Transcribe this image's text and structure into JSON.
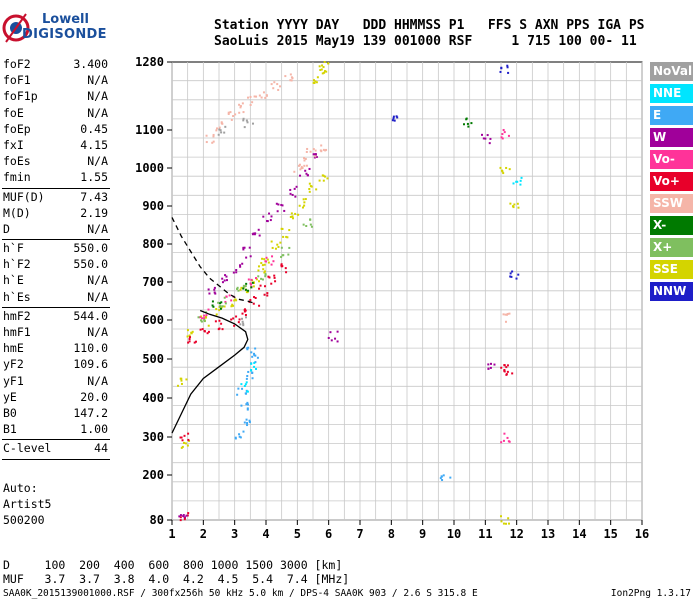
{
  "logo": {
    "brand": "Lowell",
    "product": "DIGISONDE"
  },
  "header": {
    "line1": "Station YYYY DAY   DDD HHMMSS P1   FFS S AXN PPS IGA PS",
    "line2": "SaoLuis 2015 May19 139 001000 RSF     1 715 100 00- 11"
  },
  "params": [
    {
      "label": "foF2",
      "value": "3.400"
    },
    {
      "label": "foF1",
      "value": "N/A"
    },
    {
      "label": "foF1p",
      "value": "N/A"
    },
    {
      "label": "foE",
      "value": "N/A"
    },
    {
      "label": "foEp",
      "value": "0.45"
    },
    {
      "label": "fxI",
      "value": "4.15"
    },
    {
      "label": "foEs",
      "value": "N/A"
    },
    {
      "label": "fmin",
      "value": "1.55"
    },
    {
      "sep": true
    },
    {
      "label": "MUF(D)",
      "value": "7.43"
    },
    {
      "label": "M(D)",
      "value": "2.19"
    },
    {
      "label": "D",
      "value": "N/A"
    },
    {
      "sep": true
    },
    {
      "label": "h`F",
      "value": "550.0"
    },
    {
      "label": "h`F2",
      "value": "550.0"
    },
    {
      "label": "h`E",
      "value": "N/A"
    },
    {
      "label": "h`Es",
      "value": "N/A"
    },
    {
      "sep": true
    },
    {
      "label": "hmF2",
      "value": "544.0"
    },
    {
      "label": "hmF1",
      "value": "N/A"
    },
    {
      "label": "hmE",
      "value": "110.0"
    },
    {
      "label": "yF2",
      "value": "109.6"
    },
    {
      "label": "yF1",
      "value": "N/A"
    },
    {
      "label": "yE",
      "value": "20.0"
    },
    {
      "label": "B0",
      "value": "147.2"
    },
    {
      "label": "B1",
      "value": "1.00"
    },
    {
      "sep": true
    },
    {
      "label": "C-level",
      "value": "44"
    },
    {
      "sep": true
    }
  ],
  "auto": {
    "line1": "Auto:",
    "line2": "Artist5",
    "line3": "500200"
  },
  "muf_table": {
    "d_row": "D     100  200  400  600  800 1000 1500 3000 [km]",
    "muf_row": "MUF   3.7  3.7  3.8  4.0  4.2  4.5  5.4  7.4 [MHz]"
  },
  "footer": {
    "left": "SAA0K_2015139001000.RSF / 300fx256h 50 kHz 5.0 km / DPS-4 SAA0K 903 / 2.6 S 315.8 E",
    "right": "Ion2Png 1.3.17"
  },
  "legend": [
    {
      "label": "NoVal",
      "color": "#a0a0a0"
    },
    {
      "label": "NNE",
      "color": "#00e5ff"
    },
    {
      "label": "E",
      "color": "#3fa9f5"
    },
    {
      "label": "W",
      "color": "#a0009a"
    },
    {
      "label": "Vo-",
      "color": "#ff3399"
    },
    {
      "label": "Vo+",
      "color": "#e8002a"
    },
    {
      "label": "SSW",
      "color": "#f5b5a8"
    },
    {
      "label": "X-",
      "color": "#007a00"
    },
    {
      "label": "X+",
      "color": "#7fbf5f"
    },
    {
      "label": "SSE",
      "color": "#d4d400"
    },
    {
      "label": "NNW",
      "color": "#1e1ec8"
    }
  ],
  "chart_data": {
    "type": "scatter",
    "title": "",
    "xlabel": "",
    "ylabel": "",
    "xlim": [
      1,
      16
    ],
    "ylim": [
      80,
      1280
    ],
    "x_ticks": [
      1,
      2,
      3,
      4,
      5,
      6,
      7,
      8,
      9,
      10,
      11,
      12,
      13,
      14,
      15,
      16
    ],
    "y_ticks": [
      80,
      200,
      300,
      400,
      500,
      600,
      700,
      800,
      900,
      1000,
      1100,
      1280
    ],
    "grid": true,
    "legend_position": "right",
    "series": [
      {
        "name": "SSE",
        "color": "#d4d400",
        "points": [
          [
            1.6,
            570
          ],
          [
            2.0,
            600
          ],
          [
            2.5,
            630
          ],
          [
            3.0,
            650
          ],
          [
            3.3,
            680
          ],
          [
            3.6,
            700
          ],
          [
            3.8,
            740
          ],
          [
            4.0,
            760
          ],
          [
            4.3,
            800
          ],
          [
            4.6,
            830
          ],
          [
            4.9,
            870
          ],
          [
            5.2,
            910
          ],
          [
            5.5,
            950
          ],
          [
            5.8,
            980
          ],
          [
            5.5,
            1240
          ],
          [
            5.7,
            1260
          ],
          [
            5.9,
            1270
          ],
          [
            11.6,
            1000
          ],
          [
            11.9,
            900
          ],
          [
            1.3,
            440
          ],
          [
            1.4,
            280
          ],
          [
            11.6,
            85
          ]
        ]
      },
      {
        "name": "Vo+",
        "color": "#e8002a",
        "points": [
          [
            1.6,
            550
          ],
          [
            2.0,
            575
          ],
          [
            2.5,
            590
          ],
          [
            3.0,
            600
          ],
          [
            3.3,
            620
          ],
          [
            3.6,
            650
          ],
          [
            3.9,
            680
          ],
          [
            4.2,
            710
          ],
          [
            4.6,
            740
          ],
          [
            11.7,
            470
          ],
          [
            11.6,
            480
          ],
          [
            1.4,
            300
          ],
          [
            1.4,
            90
          ]
        ]
      },
      {
        "name": "W",
        "color": "#a0009a",
        "points": [
          [
            2.2,
            680
          ],
          [
            2.7,
            710
          ],
          [
            3.1,
            740
          ],
          [
            3.4,
            780
          ],
          [
            3.7,
            830
          ],
          [
            4.0,
            870
          ],
          [
            4.4,
            900
          ],
          [
            4.8,
            940
          ],
          [
            5.2,
            990
          ],
          [
            5.6,
            1030
          ],
          [
            11.2,
            480
          ],
          [
            11.0,
            1080
          ],
          [
            1.3,
            100
          ],
          [
            6.1,
            560
          ]
        ]
      },
      {
        "name": "SSW",
        "color": "#f5b5a8",
        "points": [
          [
            2.2,
            1080
          ],
          [
            2.5,
            1110
          ],
          [
            2.9,
            1140
          ],
          [
            3.2,
            1160
          ],
          [
            3.5,
            1180
          ],
          [
            3.9,
            1200
          ],
          [
            4.3,
            1220
          ],
          [
            4.7,
            1240
          ],
          [
            5.0,
            1000
          ],
          [
            5.2,
            1020
          ],
          [
            5.4,
            1040
          ],
          [
            5.8,
            1050
          ],
          [
            11.7,
            610
          ]
        ]
      },
      {
        "name": "Vo-",
        "color": "#ff3399",
        "points": [
          [
            2.0,
            620
          ],
          [
            2.8,
            660
          ],
          [
            3.5,
            700
          ],
          [
            4.1,
            760
          ],
          [
            11.6,
            300
          ],
          [
            11.6,
            1090
          ]
        ]
      },
      {
        "name": "X+",
        "color": "#7fbf5f",
        "points": [
          [
            1.9,
            610
          ],
          [
            2.6,
            650
          ],
          [
            3.2,
            680
          ],
          [
            3.8,
            720
          ],
          [
            4.6,
            780
          ],
          [
            5.3,
            860
          ]
        ]
      },
      {
        "name": "X-",
        "color": "#007a00",
        "points": [
          [
            10.4,
            1120
          ],
          [
            2.4,
            640
          ],
          [
            3.4,
            690
          ]
        ]
      },
      {
        "name": "E",
        "color": "#3fa9f5",
        "points": [
          [
            3.2,
            420
          ],
          [
            3.3,
            380
          ],
          [
            3.4,
            460
          ],
          [
            3.6,
            500
          ],
          [
            9.7,
            190
          ],
          [
            3.1,
            310
          ],
          [
            3.3,
            340
          ],
          [
            3.5,
            520
          ]
        ]
      },
      {
        "name": "NNE",
        "color": "#00e5ff",
        "points": [
          [
            3.3,
            430
          ],
          [
            3.5,
            480
          ],
          [
            12.0,
            970
          ]
        ]
      },
      {
        "name": "NNW",
        "color": "#1e1ec8",
        "points": [
          [
            11.6,
            1260
          ],
          [
            8.0,
            1140
          ],
          [
            11.9,
            720
          ]
        ]
      },
      {
        "name": "NoVal",
        "color": "#a0a0a0",
        "points": [
          [
            3.3,
            600
          ],
          [
            3.4,
            1120
          ],
          [
            2.6,
            1100
          ]
        ]
      }
    ],
    "profile_solid": [
      [
        1.0,
        310
      ],
      [
        1.3,
        360
      ],
      [
        1.6,
        410
      ],
      [
        2.0,
        450
      ],
      [
        2.5,
        480
      ],
      [
        3.0,
        510
      ],
      [
        3.3,
        530
      ],
      [
        3.42,
        550
      ],
      [
        3.35,
        570
      ],
      [
        3.0,
        590
      ],
      [
        2.6,
        605
      ],
      [
        2.2,
        615
      ],
      [
        1.9,
        625
      ]
    ],
    "profile_dashed": [
      [
        1.0,
        870
      ],
      [
        1.3,
        820
      ],
      [
        1.6,
        780
      ],
      [
        1.9,
        740
      ],
      [
        2.2,
        710
      ],
      [
        2.5,
        690
      ],
      [
        2.8,
        670
      ],
      [
        3.1,
        655
      ],
      [
        3.4,
        650
      ],
      [
        3.6,
        645
      ]
    ]
  }
}
